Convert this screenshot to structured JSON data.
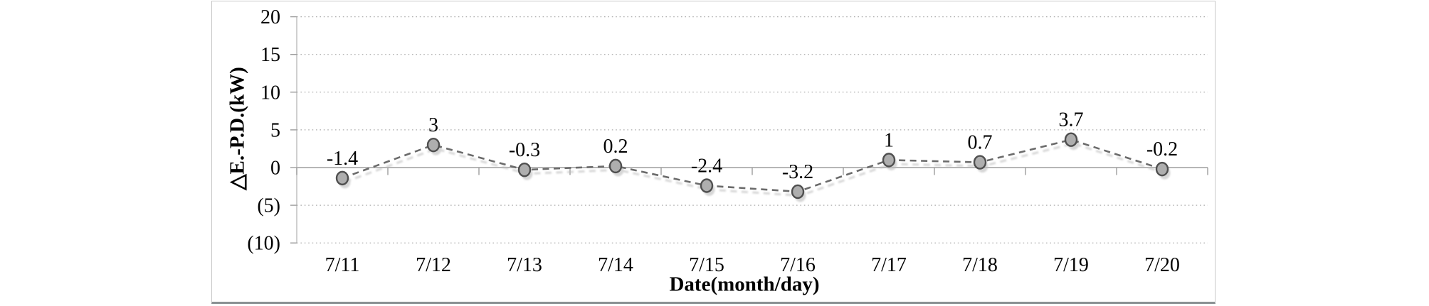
{
  "chart": {
    "xlabel": "Date(month/day)",
    "ylabel": "△E.-P.D.(kW)"
  },
  "chart_data": {
    "type": "line",
    "title": "",
    "xlabel": "Date(month/day)",
    "ylabel": "△E.-P.D.(kW)",
    "categories": [
      "7/11",
      "7/12",
      "7/13",
      "7/14",
      "7/15",
      "7/16",
      "7/17",
      "7/18",
      "7/19",
      "7/20"
    ],
    "series": [
      {
        "values": [
          -1.4,
          3,
          -0.3,
          0.2,
          -2.4,
          -3.2,
          1,
          0.7,
          3.7,
          -0.2
        ],
        "point_labels": [
          "-1.4",
          "3",
          "-0.3",
          "0.2",
          "-2.4",
          "-3.2",
          "1",
          "0.7",
          "3.7",
          "-0.2"
        ]
      }
    ],
    "ylim": [
      -10,
      20
    ],
    "y_ticks": [
      {
        "value": 20,
        "label": "20"
      },
      {
        "value": 15,
        "label": "15"
      },
      {
        "value": 10,
        "label": "10"
      },
      {
        "value": 5,
        "label": "5"
      },
      {
        "value": 0,
        "label": "0"
      },
      {
        "value": -5,
        "label": "(5)"
      },
      {
        "value": -10,
        "label": "(10)"
      }
    ],
    "grid": "horizontal-dotted",
    "legend": "none",
    "line_style": "dashed",
    "marker": "circle",
    "colors": {
      "line": "#6b6b6b",
      "line_shadow": "#bcbcbc",
      "marker_fill": "#aeaeae",
      "marker_stroke": "#4f4f4f",
      "grid": "#ababab",
      "axis": "#bdbdbd",
      "tick": "#9d9d9d",
      "zero_line": "#9d9d9d",
      "label": "#000000"
    }
  }
}
